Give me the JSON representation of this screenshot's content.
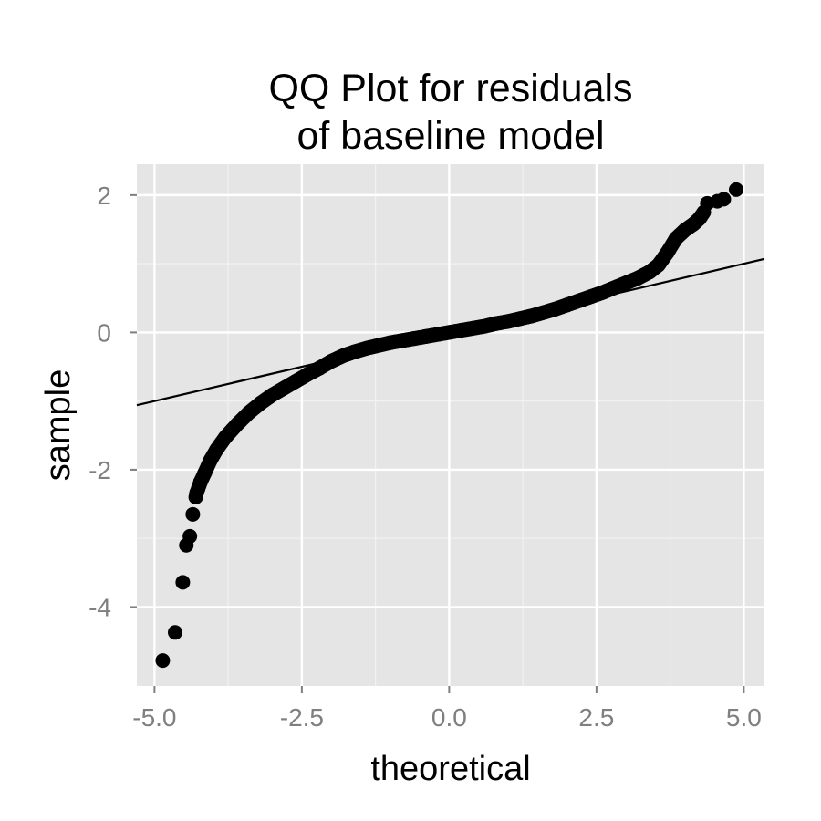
{
  "chart_data": {
    "type": "scatter",
    "title_lines": [
      "QQ Plot for residuals",
      "of baseline model"
    ],
    "xlabel": "theoretical",
    "ylabel": "sample",
    "xlim": [
      -5.3,
      5.35
    ],
    "ylim": [
      -5.15,
      2.45
    ],
    "x_ticks": [
      -5.0,
      -2.5,
      0.0,
      2.5,
      5.0
    ],
    "x_tick_labels": [
      "-5.0",
      "-2.5",
      "0.0",
      "2.5",
      "5.0"
    ],
    "y_ticks": [
      -4,
      -2,
      0,
      2
    ],
    "y_tick_labels": [
      "-4",
      "-2",
      "0",
      "2"
    ],
    "grid": true,
    "reference_line": {
      "intercept": 0.0,
      "slope": 0.2
    },
    "points": [
      [
        -4.86,
        -4.78
      ],
      [
        -4.65,
        -4.37
      ],
      [
        -4.52,
        -3.64
      ],
      [
        -4.46,
        -3.1
      ],
      [
        -4.4,
        -2.97
      ],
      [
        -4.35,
        -2.65
      ],
      [
        -4.29,
        -2.35
      ],
      [
        -4.22,
        -2.18
      ],
      [
        -4.15,
        -2.05
      ],
      [
        -4.05,
        -1.86
      ],
      [
        -3.95,
        -1.71
      ],
      [
        -3.8,
        -1.53
      ],
      [
        -3.6,
        -1.34
      ],
      [
        -3.4,
        -1.17
      ],
      [
        -3.2,
        -1.03
      ],
      [
        -3.0,
        -0.91
      ],
      [
        -2.8,
        -0.81
      ],
      [
        -2.6,
        -0.71
      ],
      [
        -2.4,
        -0.61
      ],
      [
        -2.2,
        -0.52
      ],
      [
        -2.0,
        -0.42
      ],
      [
        -1.8,
        -0.34
      ],
      [
        -1.6,
        -0.28
      ],
      [
        -1.4,
        -0.23
      ],
      [
        -1.2,
        -0.19
      ],
      [
        -1.0,
        -0.15
      ],
      [
        -0.8,
        -0.12
      ],
      [
        -0.6,
        -0.09
      ],
      [
        -0.4,
        -0.06
      ],
      [
        -0.2,
        -0.03
      ],
      [
        0.0,
        0.0
      ],
      [
        0.2,
        0.03
      ],
      [
        0.4,
        0.06
      ],
      [
        0.6,
        0.09
      ],
      [
        0.8,
        0.13
      ],
      [
        1.0,
        0.16
      ],
      [
        1.2,
        0.2
      ],
      [
        1.4,
        0.24
      ],
      [
        1.6,
        0.29
      ],
      [
        1.8,
        0.34
      ],
      [
        2.0,
        0.4
      ],
      [
        2.2,
        0.46
      ],
      [
        2.4,
        0.52
      ],
      [
        2.6,
        0.58
      ],
      [
        2.8,
        0.65
      ],
      [
        3.0,
        0.72
      ],
      [
        3.2,
        0.79
      ],
      [
        3.4,
        0.88
      ],
      [
        3.55,
        0.98
      ],
      [
        3.7,
        1.16
      ],
      [
        3.85,
        1.37
      ],
      [
        4.0,
        1.49
      ],
      [
        4.15,
        1.58
      ],
      [
        4.25,
        1.66
      ],
      [
        4.32,
        1.75
      ],
      [
        4.38,
        1.88
      ],
      [
        4.55,
        1.91
      ],
      [
        4.66,
        1.94
      ],
      [
        4.87,
        2.08
      ]
    ]
  }
}
